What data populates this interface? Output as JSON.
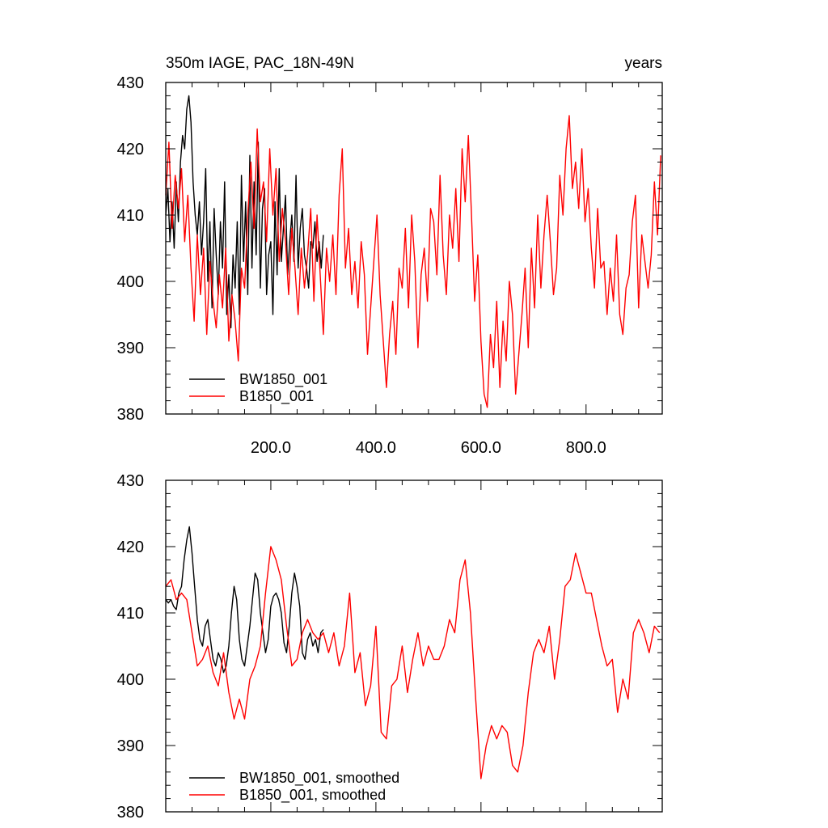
{
  "chart_data": [
    {
      "type": "line",
      "title_left": "350m IAGE, PAC_18N-49N",
      "title_right": "years",
      "xlim": [
        0,
        945
      ],
      "ylim": [
        380,
        430
      ],
      "x_ticks": [
        200,
        400,
        600,
        800
      ],
      "x_tick_labels": [
        "200.0",
        "400.0",
        "600.0",
        "800.0"
      ],
      "y_ticks": [
        380,
        390,
        400,
        410,
        420,
        430
      ],
      "y_tick_labels": [
        "380",
        "390",
        "400",
        "410",
        "420",
        "430"
      ],
      "legend_position": "bottom-left",
      "series": [
        {
          "name": "BW1850_001",
          "color": "#000000",
          "x": [
            0,
            4,
            8,
            12,
            16,
            20,
            24,
            28,
            32,
            36,
            40,
            44,
            48,
            52,
            56,
            60,
            64,
            68,
            72,
            76,
            80,
            84,
            88,
            92,
            96,
            100,
            104,
            108,
            112,
            116,
            120,
            124,
            128,
            132,
            136,
            140,
            144,
            148,
            152,
            156,
            160,
            164,
            168,
            172,
            176,
            180,
            184,
            188,
            192,
            196,
            200,
            204,
            208,
            212,
            216,
            220,
            224,
            228,
            232,
            236,
            240,
            244,
            248,
            252,
            256,
            260,
            264,
            268,
            272,
            276,
            280,
            284,
            288,
            292,
            296,
            300
          ],
          "values": [
            410,
            414,
            406,
            412,
            405,
            415,
            409,
            418,
            422,
            420,
            426,
            428,
            424,
            415,
            410,
            407,
            412,
            404,
            409,
            417,
            400,
            409,
            396,
            411,
            404,
            398,
            409,
            402,
            415,
            395,
            401,
            393,
            404,
            399,
            409,
            395,
            416,
            403,
            412,
            398,
            419,
            402,
            415,
            404,
            421,
            399,
            411,
            414,
            398,
            404,
            406,
            395,
            412,
            401,
            417,
            403,
            408,
            413,
            401,
            406,
            410,
            403,
            416,
            402,
            408,
            411,
            404,
            402,
            399,
            406,
            405,
            409,
            403,
            406,
            402,
            407
          ]
        },
        {
          "name": "B1850_001",
          "color": "#ff0000",
          "x": [
            0,
            6,
            12,
            18,
            24,
            30,
            36,
            42,
            48,
            54,
            60,
            66,
            72,
            78,
            84,
            90,
            96,
            102,
            108,
            114,
            120,
            126,
            132,
            138,
            144,
            150,
            156,
            162,
            168,
            174,
            180,
            186,
            192,
            198,
            204,
            210,
            216,
            222,
            228,
            234,
            240,
            246,
            252,
            258,
            264,
            270,
            276,
            282,
            288,
            294,
            300,
            306,
            312,
            318,
            324,
            330,
            336,
            342,
            348,
            354,
            360,
            366,
            372,
            378,
            384,
            390,
            396,
            402,
            408,
            414,
            420,
            426,
            432,
            438,
            444,
            450,
            456,
            462,
            468,
            474,
            480,
            486,
            492,
            498,
            504,
            510,
            516,
            522,
            528,
            534,
            540,
            546,
            552,
            558,
            564,
            570,
            576,
            582,
            588,
            594,
            600,
            606,
            612,
            618,
            624,
            630,
            636,
            642,
            648,
            654,
            660,
            666,
            672,
            678,
            684,
            690,
            696,
            702,
            708,
            714,
            720,
            726,
            732,
            738,
            744,
            750,
            756,
            762,
            768,
            774,
            780,
            786,
            792,
            798,
            804,
            810,
            816,
            822,
            828,
            834,
            840,
            846,
            852,
            858,
            864,
            870,
            876,
            882,
            888,
            894,
            900,
            906,
            912,
            918,
            924,
            930,
            936,
            942
          ],
          "values": [
            413,
            421,
            408,
            416,
            411,
            417,
            406,
            413,
            402,
            394,
            407,
            398,
            405,
            392,
            403,
            397,
            393,
            401,
            396,
            405,
            391,
            398,
            394,
            388,
            402,
            399,
            410,
            418,
            408,
            423,
            412,
            415,
            406,
            420,
            410,
            417,
            403,
            411,
            406,
            398,
            408,
            402,
            395,
            405,
            399,
            404,
            411,
            397,
            410,
            401,
            392,
            405,
            400,
            407,
            398,
            413,
            420,
            402,
            408,
            398,
            403,
            396,
            406,
            401,
            389,
            396,
            403,
            410,
            398,
            391,
            384,
            392,
            397,
            389,
            402,
            399,
            408,
            396,
            410,
            403,
            390,
            401,
            405,
            397,
            411,
            409,
            401,
            416,
            404,
            398,
            410,
            405,
            414,
            403,
            420,
            412,
            422,
            410,
            397,
            404,
            391,
            383,
            381,
            392,
            387,
            397,
            384,
            394,
            388,
            400,
            395,
            383,
            389,
            395,
            402,
            390,
            405,
            396,
            410,
            399,
            407,
            413,
            406,
            398,
            402,
            416,
            410,
            420,
            425,
            414,
            418,
            411,
            420,
            409,
            414,
            405,
            399,
            411,
            402,
            403,
            395,
            402,
            397,
            407,
            395,
            392,
            399,
            401,
            409,
            413,
            396,
            407,
            403,
            399,
            404,
            415,
            407,
            419
          ]
        }
      ]
    },
    {
      "type": "line",
      "xlim": [
        0,
        945
      ],
      "ylim": [
        380,
        430
      ],
      "x_ticks": [
        200,
        400,
        600,
        800
      ],
      "y_ticks": [
        380,
        390,
        400,
        410,
        420,
        430
      ],
      "y_tick_labels": [
        "380",
        "390",
        "400",
        "410",
        "420",
        "430"
      ],
      "legend_position": "bottom-left",
      "series": [
        {
          "name": "BW1850_001, smoothed",
          "color": "#000000",
          "x": [
            0,
            5,
            10,
            15,
            20,
            25,
            30,
            35,
            40,
            45,
            50,
            55,
            60,
            65,
            70,
            75,
            80,
            85,
            90,
            95,
            100,
            105,
            110,
            115,
            120,
            125,
            130,
            135,
            140,
            145,
            150,
            155,
            160,
            165,
            170,
            175,
            180,
            185,
            190,
            195,
            200,
            205,
            210,
            215,
            220,
            225,
            230,
            235,
            240,
            245,
            250,
            255,
            260,
            265,
            270,
            275,
            280,
            285,
            290,
            295,
            300
          ],
          "values": [
            412,
            411.5,
            412,
            411,
            410.5,
            413,
            414,
            418,
            421,
            423,
            419,
            414,
            409,
            406,
            405,
            408,
            409,
            406,
            403,
            402,
            404,
            403,
            401,
            402,
            405,
            410,
            414,
            412,
            406,
            403,
            402,
            405,
            408,
            412,
            416,
            415,
            410,
            407,
            404,
            406,
            411,
            412.5,
            413,
            412,
            410,
            405.5,
            404,
            408,
            413,
            416,
            414,
            411,
            404,
            403,
            406,
            407,
            405,
            406,
            404,
            407,
            407.5
          ]
        },
        {
          "name": "B1850_001, smoothed",
          "color": "#ff0000",
          "x": [
            0,
            10,
            20,
            30,
            40,
            50,
            60,
            70,
            80,
            90,
            100,
            110,
            120,
            130,
            140,
            150,
            160,
            170,
            180,
            190,
            200,
            210,
            220,
            230,
            240,
            250,
            260,
            270,
            280,
            290,
            300,
            310,
            320,
            330,
            340,
            350,
            360,
            370,
            380,
            390,
            400,
            410,
            420,
            430,
            440,
            450,
            460,
            470,
            480,
            490,
            500,
            510,
            520,
            530,
            540,
            550,
            560,
            570,
            580,
            590,
            600,
            610,
            620,
            630,
            640,
            650,
            660,
            670,
            680,
            690,
            700,
            710,
            720,
            730,
            740,
            750,
            760,
            770,
            780,
            790,
            800,
            810,
            820,
            830,
            840,
            850,
            860,
            870,
            880,
            890,
            900,
            910,
            920,
            930,
            940
          ],
          "values": [
            414,
            415,
            412,
            413,
            412,
            407,
            402,
            403,
            405,
            401,
            399,
            404,
            398,
            394,
            397,
            394,
            400,
            402,
            405,
            413,
            420,
            418,
            415,
            408,
            402,
            403,
            407,
            409,
            407,
            406,
            407,
            404,
            407,
            402,
            405,
            413,
            401,
            404,
            396,
            399,
            408,
            392,
            391,
            399,
            400,
            405,
            398,
            403,
            407,
            402,
            405,
            403,
            403,
            405,
            409,
            407,
            415,
            418,
            410,
            397,
            385,
            390,
            393,
            391,
            393,
            392,
            387,
            386,
            390,
            398,
            404,
            406,
            404,
            408,
            400,
            406,
            414,
            415,
            419,
            416,
            413,
            413,
            409,
            405,
            402,
            403,
            395,
            400,
            397,
            407,
            409,
            407,
            404,
            408,
            407
          ]
        }
      ]
    }
  ]
}
